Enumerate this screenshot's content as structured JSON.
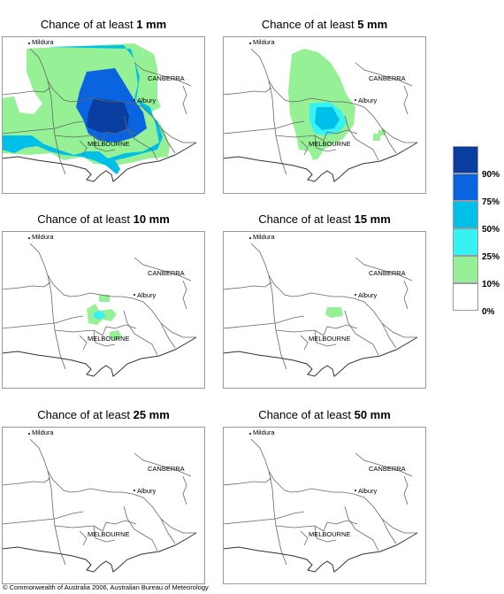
{
  "panels": [
    {
      "prefix": "Chance of at least ",
      "amount": "1 mm"
    },
    {
      "prefix": "Chance of at least ",
      "amount": "5 mm"
    },
    {
      "prefix": "Chance of at least ",
      "amount": "10 mm"
    },
    {
      "prefix": "Chance of at least ",
      "amount": "15 mm"
    },
    {
      "prefix": "Chance of at least ",
      "amount": "25 mm"
    },
    {
      "prefix": "Chance of at least ",
      "amount": "50 mm"
    }
  ],
  "places": {
    "mildura": "Mildura",
    "canberra": "CANBERRA",
    "albury": "Albury",
    "melbourne": "MELBOURNE"
  },
  "legend": {
    "labels": [
      "90%",
      "75%",
      "50%",
      "25%",
      "10%",
      "0%"
    ],
    "colors": [
      "#0a3da0",
      "#0a64e0",
      "#00bfe8",
      "#36f2f2",
      "#96f096",
      "#ffffff"
    ]
  },
  "copyright": "© Commonwealth of Australia 2006, Australian Bureau of Meteorology"
}
